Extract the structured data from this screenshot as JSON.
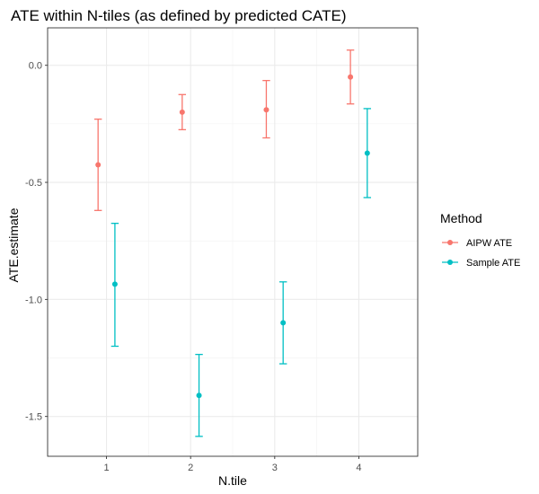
{
  "chart_data": {
    "type": "scatter",
    "title": "ATE within N-tiles (as defined by predicted CATE)",
    "xlabel": "N.tile",
    "ylabel": "ATE.estimate",
    "categories": [
      "1",
      "2",
      "3",
      "4"
    ],
    "ylim": [
      -1.67,
      0.16
    ],
    "yticks": [
      0.0,
      -0.5,
      -1.0,
      -1.5
    ],
    "ytick_labels": [
      "0.0",
      "-0.5",
      "-1.0",
      "-1.5"
    ],
    "grid": true,
    "legend": {
      "title": "Method",
      "position": "right"
    },
    "series": [
      {
        "name": "AIPW ATE",
        "color": "#F8766D",
        "values": [
          -0.425,
          -0.2,
          -0.19,
          -0.05
        ],
        "lower": [
          -0.62,
          -0.275,
          -0.31,
          -0.165
        ],
        "upper": [
          -0.23,
          -0.125,
          -0.065,
          0.065
        ]
      },
      {
        "name": "Sample ATE",
        "color": "#00BFC4",
        "values": [
          -0.935,
          -1.41,
          -1.1,
          -0.375
        ],
        "lower": [
          -1.2,
          -1.585,
          -1.275,
          -0.565
        ],
        "upper": [
          -0.675,
          -1.235,
          -0.925,
          -0.185
        ]
      }
    ]
  }
}
